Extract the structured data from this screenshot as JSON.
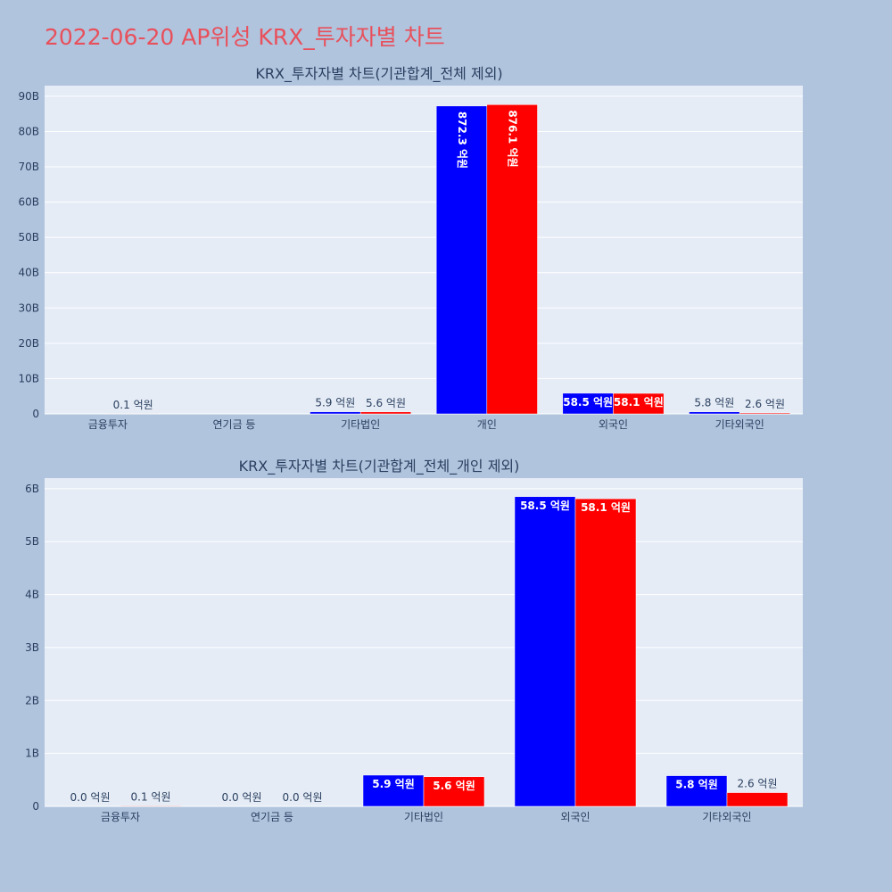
{
  "page_title": "2022-06-20 AP위성 KRX_투자자별 차트",
  "colors": {
    "series_a": "#0000ff",
    "series_b": "#ff0000",
    "plot_bg": "#e5ecf6",
    "page_bg": "#b0c4de",
    "title": "#e8505b"
  },
  "chart_data": [
    {
      "type": "bar",
      "title": "KRX_투자자별 차트(기관합계_전체 제외)",
      "categories": [
        "금융투자",
        "연기금 등",
        "기타법인",
        "개인",
        "외국인",
        "기타외국인"
      ],
      "ylim": [
        0,
        93
      ],
      "yticks": [
        0,
        10,
        20,
        30,
        40,
        50,
        60,
        70,
        80,
        90
      ],
      "ytick_labels": [
        "0",
        "10B",
        "20B",
        "30B",
        "40B",
        "50B",
        "60B",
        "70B",
        "80B",
        "90B"
      ],
      "grid": true,
      "series": [
        {
          "color": "#0000ff",
          "values": [
            0,
            0,
            0.59,
            87.23,
            5.85,
            0.58
          ],
          "labels": [
            "",
            "",
            "5.9 억원",
            "872.3 억원",
            "58.5 억원",
            "5.8 억원"
          ]
        },
        {
          "color": "#ff0000",
          "values": [
            0.01,
            0,
            0.56,
            87.61,
            5.81,
            0.26
          ],
          "labels": [
            "0.1 억원",
            "",
            "5.6 억원",
            "876.1 억원",
            "58.1 억원",
            "2.6 억원"
          ]
        }
      ]
    },
    {
      "type": "bar",
      "title": "KRX_투자자별 차트(기관합계_전체_개인 제외)",
      "categories": [
        "금융투자",
        "연기금 등",
        "기타법인",
        "외국인",
        "기타외국인"
      ],
      "ylim": [
        0,
        6.2
      ],
      "yticks": [
        0,
        1,
        2,
        3,
        4,
        5,
        6
      ],
      "ytick_labels": [
        "0",
        "1B",
        "2B",
        "3B",
        "4B",
        "5B",
        "6B"
      ],
      "grid": true,
      "series": [
        {
          "color": "#0000ff",
          "values": [
            0,
            0,
            0.59,
            5.85,
            0.58
          ],
          "labels": [
            "0.0 억원",
            "0.0 억원",
            "5.9 억원",
            "58.5 억원",
            "5.8 억원"
          ]
        },
        {
          "color": "#ff0000",
          "values": [
            0.01,
            0,
            0.56,
            5.81,
            0.26
          ],
          "labels": [
            "0.1 억원",
            "0.0 억원",
            "5.6 억원",
            "58.1 억원",
            "2.6 억원"
          ]
        }
      ]
    }
  ]
}
